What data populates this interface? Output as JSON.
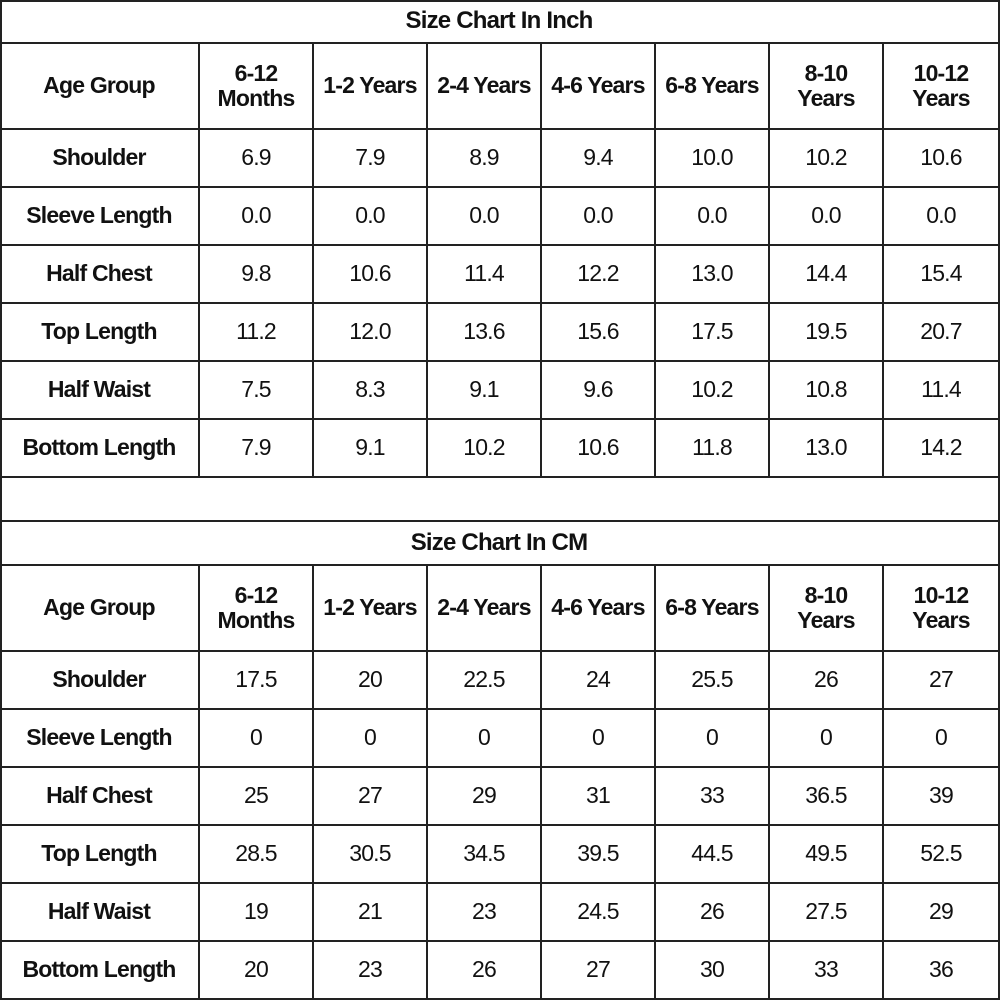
{
  "tables": [
    {
      "title": "Size Chart In Inch",
      "header": [
        "Age Group",
        "6-12 Months",
        "1-2 Years",
        "2-4 Years",
        "4-6 Years",
        "6-8 Years",
        "8-10 Years",
        "10-12 Years"
      ],
      "rows": [
        [
          "Shoulder",
          "6.9",
          "7.9",
          "8.9",
          "9.4",
          "10.0",
          "10.2",
          "10.6"
        ],
        [
          "Sleeve Length",
          "0.0",
          "0.0",
          "0.0",
          "0.0",
          "0.0",
          "0.0",
          "0.0"
        ],
        [
          "Half Chest",
          "9.8",
          "10.6",
          "11.4",
          "12.2",
          "13.0",
          "14.4",
          "15.4"
        ],
        [
          "Top Length",
          "11.2",
          "12.0",
          "13.6",
          "15.6",
          "17.5",
          "19.5",
          "20.7"
        ],
        [
          "Half Waist",
          "7.5",
          "8.3",
          "9.1",
          "9.6",
          "10.2",
          "10.8",
          "11.4"
        ],
        [
          "Bottom Length",
          "7.9",
          "9.1",
          "10.2",
          "10.6",
          "11.8",
          "13.0",
          "14.2"
        ]
      ]
    },
    {
      "title": "Size Chart In CM",
      "header": [
        "Age Group",
        "6-12 Months",
        "1-2 Years",
        "2-4 Years",
        "4-6 Years",
        "6-8 Years",
        "8-10 Years",
        "10-12 Years"
      ],
      "rows": [
        [
          "Shoulder",
          "17.5",
          "20",
          "22.5",
          "24",
          "25.5",
          "26",
          "27"
        ],
        [
          "Sleeve Length",
          "0",
          "0",
          "0",
          "0",
          "0",
          "0",
          "0"
        ],
        [
          "Half Chest",
          "25",
          "27",
          "29",
          "31",
          "33",
          "36.5",
          "39"
        ],
        [
          "Top Length",
          "28.5",
          "30.5",
          "34.5",
          "39.5",
          "44.5",
          "49.5",
          "52.5"
        ],
        [
          "Half Waist",
          "19",
          "21",
          "23",
          "24.5",
          "26",
          "27.5",
          "29"
        ],
        [
          "Bottom Length",
          "20",
          "23",
          "26",
          "27",
          "30",
          "33",
          "36"
        ]
      ]
    }
  ]
}
